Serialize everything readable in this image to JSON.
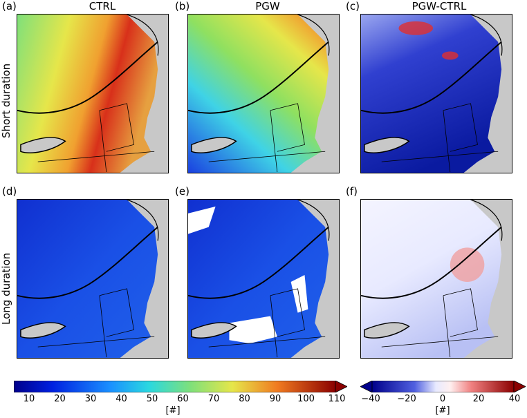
{
  "columns": [
    {
      "tag": "(a)",
      "title": "CTRL"
    },
    {
      "tag": "(b)",
      "title": "PGW"
    },
    {
      "tag": "(c)",
      "title": "PGW-CTRL"
    }
  ],
  "row2_tags": [
    "(d)",
    "(e)",
    "(f)"
  ],
  "rows": [
    "Short duration",
    "Long duration"
  ],
  "colorbar_left": {
    "ticks": [
      "10",
      "20",
      "30",
      "40",
      "50",
      "60",
      "70",
      "80",
      "90",
      "100",
      "110"
    ],
    "unit": "[#]"
  },
  "colorbar_right": {
    "ticks": [
      "−40",
      "−20",
      "0",
      "20",
      "40"
    ],
    "unit": "[#]"
  },
  "colors": {
    "land": "#c8c8c8",
    "low": "#00008b",
    "mid": "#2a7fff",
    "cyan": "#3fd3e6",
    "yellow": "#e6e64a",
    "red": "#d8301a",
    "diverge_neg": "#0a1aa0",
    "diverge_pos": "#c00000"
  }
}
